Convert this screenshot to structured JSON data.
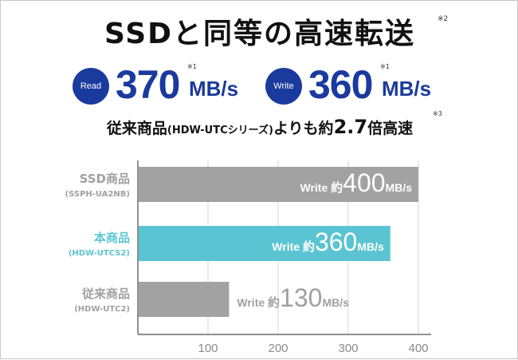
{
  "headline": {
    "text": "SSDと同等の高速転送",
    "note": "※2"
  },
  "read": {
    "badge": "Read",
    "value": "370",
    "unit": "MB/s",
    "note": "※1"
  },
  "write": {
    "badge": "Write",
    "value": "360",
    "unit": "MB/s",
    "note": "※1"
  },
  "comparison": {
    "lead": "従来商品",
    "paren": "(HDW-UTCシリーズ)",
    "mid": "よりも約",
    "number": "2.7",
    "tail": "倍高速",
    "note": "※3"
  },
  "colors": {
    "accent": "#1b3a9e",
    "highlight": "#5bc4d2",
    "gray_bar": "#a2a2a2",
    "gray_text": "#a0a0a0",
    "axis": "#909090"
  },
  "chart_data": {
    "type": "bar",
    "orientation": "horizontal",
    "categories": [
      {
        "name": "SSD商品",
        "sub": "(SSPH-UA2NB)",
        "value": 400,
        "bar_label": "Write",
        "prefix": "約",
        "number": "400",
        "unit": "MB/s",
        "highlight": false
      },
      {
        "name": "本商品",
        "sub": "(HDW-UTCS2)",
        "value": 360,
        "bar_label": "Write",
        "prefix": "約",
        "number": "360",
        "unit": "MB/s",
        "highlight": true
      },
      {
        "name": "従来商品",
        "sub": "(HDW-UTC2)",
        "value": 130,
        "bar_label": "Write",
        "prefix": "約",
        "number": "130",
        "unit": "MB/s",
        "highlight": false
      }
    ],
    "x_ticks": [
      "100",
      "200",
      "300",
      "400"
    ],
    "xlim": [
      0,
      400
    ],
    "grid": true,
    "xlabel": "",
    "ylabel": ""
  }
}
